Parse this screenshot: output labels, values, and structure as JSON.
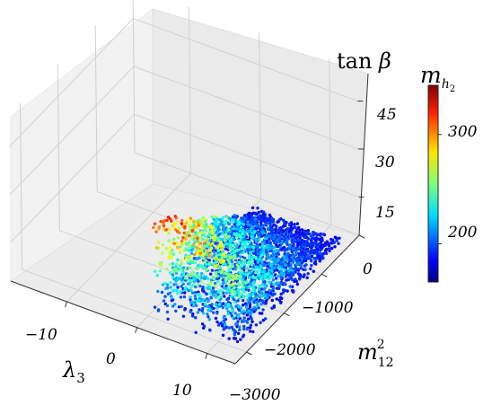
{
  "chart_data": {
    "type": "scatter",
    "projection": "3d",
    "axes": {
      "x": {
        "label": "λ3",
        "ticks": [
          -10,
          0,
          10
        ]
      },
      "y": {
        "label": "m²12",
        "ticks": [
          0,
          -1000,
          -2000,
          -3000
        ]
      },
      "z": {
        "label": "tan β",
        "ticks": [
          15,
          30,
          45
        ]
      }
    },
    "x_range": [
      -18,
      14
    ],
    "y_range": [
      -3000,
      300
    ],
    "z_range": [
      3,
      55
    ],
    "colorbar": {
      "label": "mh2",
      "colormap": "jet",
      "ticks": [
        200,
        300
      ],
      "range": [
        165,
        345
      ]
    },
    "grid": true,
    "series": [
      {
        "points_approx": "dense wedge-shaped cloud of ~thousands of points",
        "x_range": [
          0,
          13
        ],
        "y_range": [
          -2700,
          0
        ],
        "z_range": [
          3,
          38
        ],
        "color_range": [
          170,
          340
        ]
      }
    ],
    "tick_labels": {
      "x": [
        "−10",
        "0",
        "10"
      ],
      "y": [
        "0",
        "−1000",
        "−2000",
        "−3000"
      ],
      "z": [
        "15",
        "30",
        "45"
      ],
      "colorbar": [
        "200",
        "300"
      ]
    }
  }
}
